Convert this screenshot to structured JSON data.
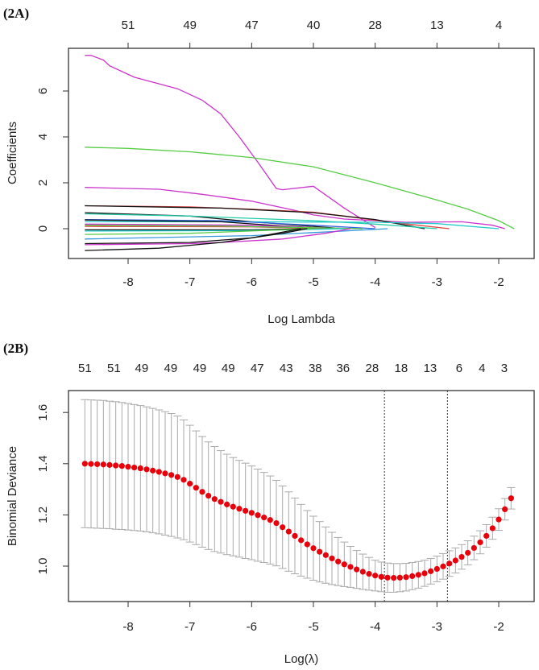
{
  "chart_data": [
    {
      "type": "line",
      "panel_label": "(2A)",
      "title": "",
      "xlabel": "Log Lambda",
      "ylabel": "Coefficients",
      "xlim": [
        -8.7,
        -1.75
      ],
      "ylim": [
        -1.0,
        7.6
      ],
      "xticks": [
        -8,
        -7,
        -6,
        -5,
        -4,
        -3,
        -2
      ],
      "yticks": [
        0,
        2,
        4,
        6
      ],
      "top_axis": {
        "positions": [
          -8,
          -7,
          -6,
          -5,
          -4,
          -3,
          -2
        ],
        "labels": [
          "51",
          "49",
          "47",
          "40",
          "28",
          "13",
          "4"
        ]
      },
      "series": [
        {
          "color": "#cc33cc",
          "points": [
            [
              -8.7,
              7.55
            ],
            [
              -8.6,
              7.55
            ],
            [
              -8.4,
              7.35
            ],
            [
              -8.3,
              7.1
            ],
            [
              -7.9,
              6.6
            ],
            [
              -7.2,
              6.1
            ],
            [
              -6.8,
              5.6
            ],
            [
              -6.5,
              5.0
            ],
            [
              -6.2,
              4.0
            ],
            [
              -5.9,
              2.9
            ],
            [
              -5.6,
              1.75
            ],
            [
              -5.5,
              1.7
            ],
            [
              -5.0,
              1.85
            ],
            [
              -4.5,
              0.9
            ],
            [
              -4.0,
              0.05
            ]
          ]
        },
        {
          "color": "#55cc44",
          "points": [
            [
              -8.7,
              3.55
            ],
            [
              -8,
              3.5
            ],
            [
              -7,
              3.35
            ],
            [
              -6,
              3.1
            ],
            [
              -5,
              2.7
            ],
            [
              -4,
              2.0
            ],
            [
              -3,
              1.25
            ],
            [
              -2.5,
              0.85
            ],
            [
              -2,
              0.35
            ],
            [
              -1.75,
              0
            ]
          ]
        },
        {
          "color": "#cc33cc",
          "points": [
            [
              -8.7,
              1.8
            ],
            [
              -7.5,
              1.72
            ],
            [
              -6.8,
              1.5
            ],
            [
              -6,
              1.2
            ],
            [
              -5.3,
              0.8
            ],
            [
              -5,
              0.6
            ],
            [
              -4.5,
              0.42
            ],
            [
              -3.5,
              0.28
            ],
            [
              -2.6,
              0.3
            ],
            [
              -2.1,
              0.15
            ],
            [
              -1.9,
              0
            ]
          ]
        },
        {
          "color": "#dd4444",
          "points": [
            [
              -8.7,
              1.0
            ],
            [
              -7,
              0.95
            ],
            [
              -6,
              0.85
            ],
            [
              -5,
              0.72
            ],
            [
              -4.5,
              0.55
            ],
            [
              -3.8,
              0.3
            ],
            [
              -2.8,
              0
            ]
          ]
        },
        {
          "color": "#111111",
          "points": [
            [
              -8.7,
              1.0
            ],
            [
              -6.5,
              0.9
            ],
            [
              -5,
              0.7
            ],
            [
              -4,
              0.4
            ],
            [
              -3.2,
              0
            ]
          ]
        },
        {
          "color": "#111111",
          "points": [
            [
              -8.7,
              0.7
            ],
            [
              -7,
              0.55
            ],
            [
              -6,
              0.3
            ],
            [
              -5,
              0.1
            ],
            [
              -4.5,
              0
            ]
          ]
        },
        {
          "color": "#22ccaa",
          "points": [
            [
              -8.7,
              0.65
            ],
            [
              -7,
              0.55
            ],
            [
              -5,
              0.35
            ],
            [
              -4,
              0.2
            ],
            [
              -3,
              0
            ]
          ]
        },
        {
          "color": "#22cccc",
          "points": [
            [
              -8.7,
              0.3
            ],
            [
              -6,
              0.3
            ],
            [
              -4,
              0.28
            ],
            [
              -3,
              0.22
            ],
            [
              -2,
              0
            ]
          ]
        },
        {
          "color": "#3366dd",
          "points": [
            [
              -8.7,
              0.4
            ],
            [
              -6.5,
              0.35
            ],
            [
              -5,
              0.15
            ],
            [
              -4,
              0
            ]
          ]
        },
        {
          "color": "#111111",
          "points": [
            [
              -8.7,
              0.38
            ],
            [
              -6.5,
              0.3
            ],
            [
              -5.5,
              0.12
            ],
            [
              -4.7,
              0
            ]
          ]
        },
        {
          "color": "#cc33cc",
          "points": [
            [
              -8.7,
              0.2
            ],
            [
              -6,
              0.15
            ],
            [
              -5,
              0.05
            ],
            [
              -4.3,
              0
            ]
          ]
        },
        {
          "color": "#dd4444",
          "points": [
            [
              -8.7,
              0.1
            ],
            [
              -6,
              0.08
            ],
            [
              -4.8,
              0
            ]
          ]
        },
        {
          "color": "#55cc44",
          "points": [
            [
              -8.7,
              0.15
            ],
            [
              -6.5,
              0.12
            ],
            [
              -4.2,
              0
            ]
          ]
        },
        {
          "color": "#111111",
          "points": [
            [
              -8.7,
              -0.05
            ],
            [
              -6,
              -0.05
            ],
            [
              -5,
              0
            ]
          ]
        },
        {
          "color": "#22cccc",
          "points": [
            [
              -8.7,
              -0.1
            ],
            [
              -6,
              -0.08
            ],
            [
              -4.5,
              0
            ]
          ]
        },
        {
          "color": "#55cc44",
          "points": [
            [
              -8.7,
              -0.25
            ],
            [
              -7,
              -0.2
            ],
            [
              -5,
              0
            ]
          ]
        },
        {
          "color": "#3399dd",
          "points": [
            [
              -8.7,
              -0.45
            ],
            [
              -6,
              -0.3
            ],
            [
              -4.5,
              -0.1
            ],
            [
              -3.8,
              0
            ]
          ]
        },
        {
          "color": "#111111",
          "points": [
            [
              -8.7,
              -0.65
            ],
            [
              -7,
              -0.6
            ],
            [
              -6,
              -0.4
            ],
            [
              -5.2,
              0
            ]
          ]
        },
        {
          "color": "#cc33cc",
          "points": [
            [
              -8.7,
              -0.7
            ],
            [
              -7,
              -0.65
            ],
            [
              -6.5,
              -0.6
            ],
            [
              -5.5,
              -0.45
            ],
            [
              -4.8,
              -0.2
            ],
            [
              -4.4,
              0
            ]
          ]
        },
        {
          "color": "#111111",
          "points": [
            [
              -8.7,
              -0.95
            ],
            [
              -7.5,
              -0.85
            ],
            [
              -6.5,
              -0.6
            ],
            [
              -5.5,
              -0.2
            ],
            [
              -5.1,
              0
            ]
          ]
        }
      ]
    },
    {
      "type": "scatter",
      "panel_label": "(2B)",
      "title": "",
      "xlabel": "Log(λ)",
      "ylabel": "Binomial Deviance",
      "xlim": [
        -8.7,
        -1.75
      ],
      "ylim": [
        0.88,
        1.66
      ],
      "xticks": [
        -8,
        -7,
        -6,
        -5,
        -4,
        -3,
        -2
      ],
      "yticks": [
        1.0,
        1.2,
        1.4,
        1.6
      ],
      "vlines": [
        -3.85,
        -2.83
      ],
      "top_axis": {
        "positions": [
          -8.7,
          -8.23,
          -7.78,
          -7.31,
          -6.84,
          -6.38,
          -5.91,
          -5.44,
          -4.97,
          -4.52,
          -4.05,
          -3.58,
          -3.11,
          -2.64,
          -2.27,
          -1.91
        ],
        "labels": [
          "51",
          "51",
          "49",
          "49",
          "49",
          "49",
          "47",
          "43",
          "38",
          "36",
          "28",
          "18",
          "13",
          "6",
          "4",
          "3"
        ]
      },
      "log_lambda_start": -8.7,
      "log_lambda_step": 0.1,
      "mean": [
        1.4,
        1.399,
        1.398,
        1.397,
        1.395,
        1.393,
        1.391,
        1.388,
        1.385,
        1.382,
        1.378,
        1.373,
        1.368,
        1.362,
        1.356,
        1.348,
        1.337,
        1.322,
        1.306,
        1.29,
        1.275,
        1.262,
        1.251,
        1.241,
        1.232,
        1.224,
        1.216,
        1.208,
        1.199,
        1.19,
        1.18,
        1.168,
        1.152,
        1.135,
        1.118,
        1.101,
        1.085,
        1.07,
        1.056,
        1.043,
        1.03,
        1.018,
        1.007,
        0.997,
        0.987,
        0.978,
        0.97,
        0.963,
        0.958,
        0.955,
        0.954,
        0.955,
        0.957,
        0.961,
        0.966,
        0.972,
        0.98,
        0.989,
        0.999,
        1.01,
        1.022,
        1.036,
        1.052,
        1.071,
        1.093,
        1.118,
        1.148,
        1.182,
        1.222,
        1.265
      ],
      "se": [
        0.25,
        0.25,
        0.25,
        0.25,
        0.249,
        0.249,
        0.248,
        0.247,
        0.246,
        0.245,
        0.244,
        0.243,
        0.242,
        0.241,
        0.24,
        0.238,
        0.234,
        0.228,
        0.222,
        0.216,
        0.21,
        0.205,
        0.2,
        0.196,
        0.192,
        0.189,
        0.186,
        0.183,
        0.18,
        0.176,
        0.172,
        0.167,
        0.161,
        0.155,
        0.148,
        0.14,
        0.132,
        0.125,
        0.118,
        0.11,
        0.102,
        0.094,
        0.087,
        0.08,
        0.074,
        0.069,
        0.064,
        0.06,
        0.058,
        0.057,
        0.056,
        0.055,
        0.054,
        0.053,
        0.052,
        0.051,
        0.05,
        0.05,
        0.05,
        0.05,
        0.049,
        0.048,
        0.047,
        0.046,
        0.045,
        0.044,
        0.043,
        0.042,
        0.042,
        0.042
      ],
      "point_color": "#e8000b",
      "errorbar_color": "#aaaaaa"
    }
  ]
}
